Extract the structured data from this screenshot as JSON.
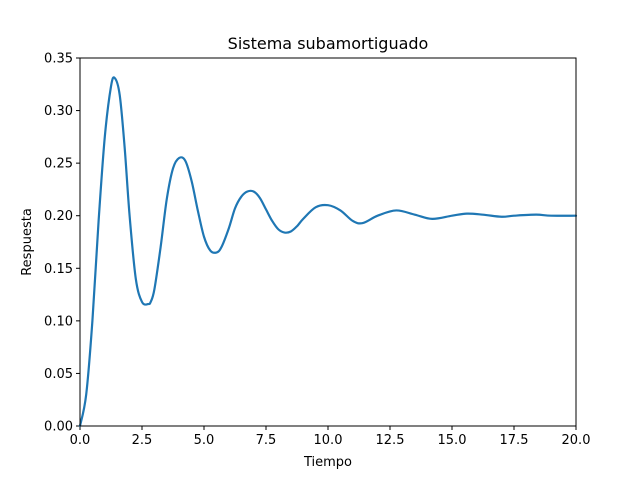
{
  "chart_data": {
    "type": "line",
    "title": "Sistema subamortiguado",
    "xlabel": "Tiempo",
    "ylabel": "Respuesta",
    "xlim": [
      0,
      20
    ],
    "ylim": [
      0,
      0.35
    ],
    "grid": false,
    "xticks": [
      0,
      2.5,
      5,
      7.5,
      10,
      12.5,
      15,
      17.5,
      20
    ],
    "xtick_labels": [
      "0.0",
      "2.5",
      "5.0",
      "7.5",
      "10.0",
      "12.5",
      "15.0",
      "17.5",
      "20.0"
    ],
    "yticks": [
      0,
      0.05,
      0.1,
      0.15,
      0.2,
      0.25,
      0.3,
      0.35
    ],
    "ytick_labels": [
      "0.00",
      "0.05",
      "0.10",
      "0.15",
      "0.20",
      "0.25",
      "0.30",
      "0.35"
    ],
    "series": [
      {
        "color": "#1f77b4",
        "x": [
          0,
          0.25,
          0.5,
          0.75,
          1.0,
          1.25,
          1.4,
          1.6,
          1.8,
          2.0,
          2.25,
          2.5,
          2.75,
          2.85,
          3.0,
          3.25,
          3.5,
          3.75,
          4.0,
          4.25,
          4.5,
          4.75,
          5.0,
          5.25,
          5.5,
          5.7,
          6.0,
          6.25,
          6.5,
          6.75,
          7.0,
          7.25,
          7.5,
          7.75,
          8.0,
          8.25,
          8.5,
          8.75,
          9.0,
          9.5,
          10.0,
          10.5,
          11.0,
          11.4,
          12.0,
          12.75,
          13.5,
          14.2,
          15.0,
          15.6,
          16.25,
          17.0,
          17.5,
          18.4,
          19.0,
          20.0
        ],
        "y": [
          0.0,
          0.03,
          0.1,
          0.195,
          0.275,
          0.323,
          0.331,
          0.315,
          0.265,
          0.2,
          0.14,
          0.118,
          0.116,
          0.118,
          0.13,
          0.17,
          0.216,
          0.245,
          0.255,
          0.252,
          0.233,
          0.205,
          0.18,
          0.167,
          0.165,
          0.17,
          0.188,
          0.207,
          0.218,
          0.223,
          0.223,
          0.217,
          0.206,
          0.195,
          0.187,
          0.184,
          0.185,
          0.19,
          0.197,
          0.208,
          0.21,
          0.205,
          0.195,
          0.193,
          0.2,
          0.205,
          0.201,
          0.197,
          0.2,
          0.202,
          0.201,
          0.199,
          0.2,
          0.201,
          0.2,
          0.2
        ]
      }
    ]
  }
}
